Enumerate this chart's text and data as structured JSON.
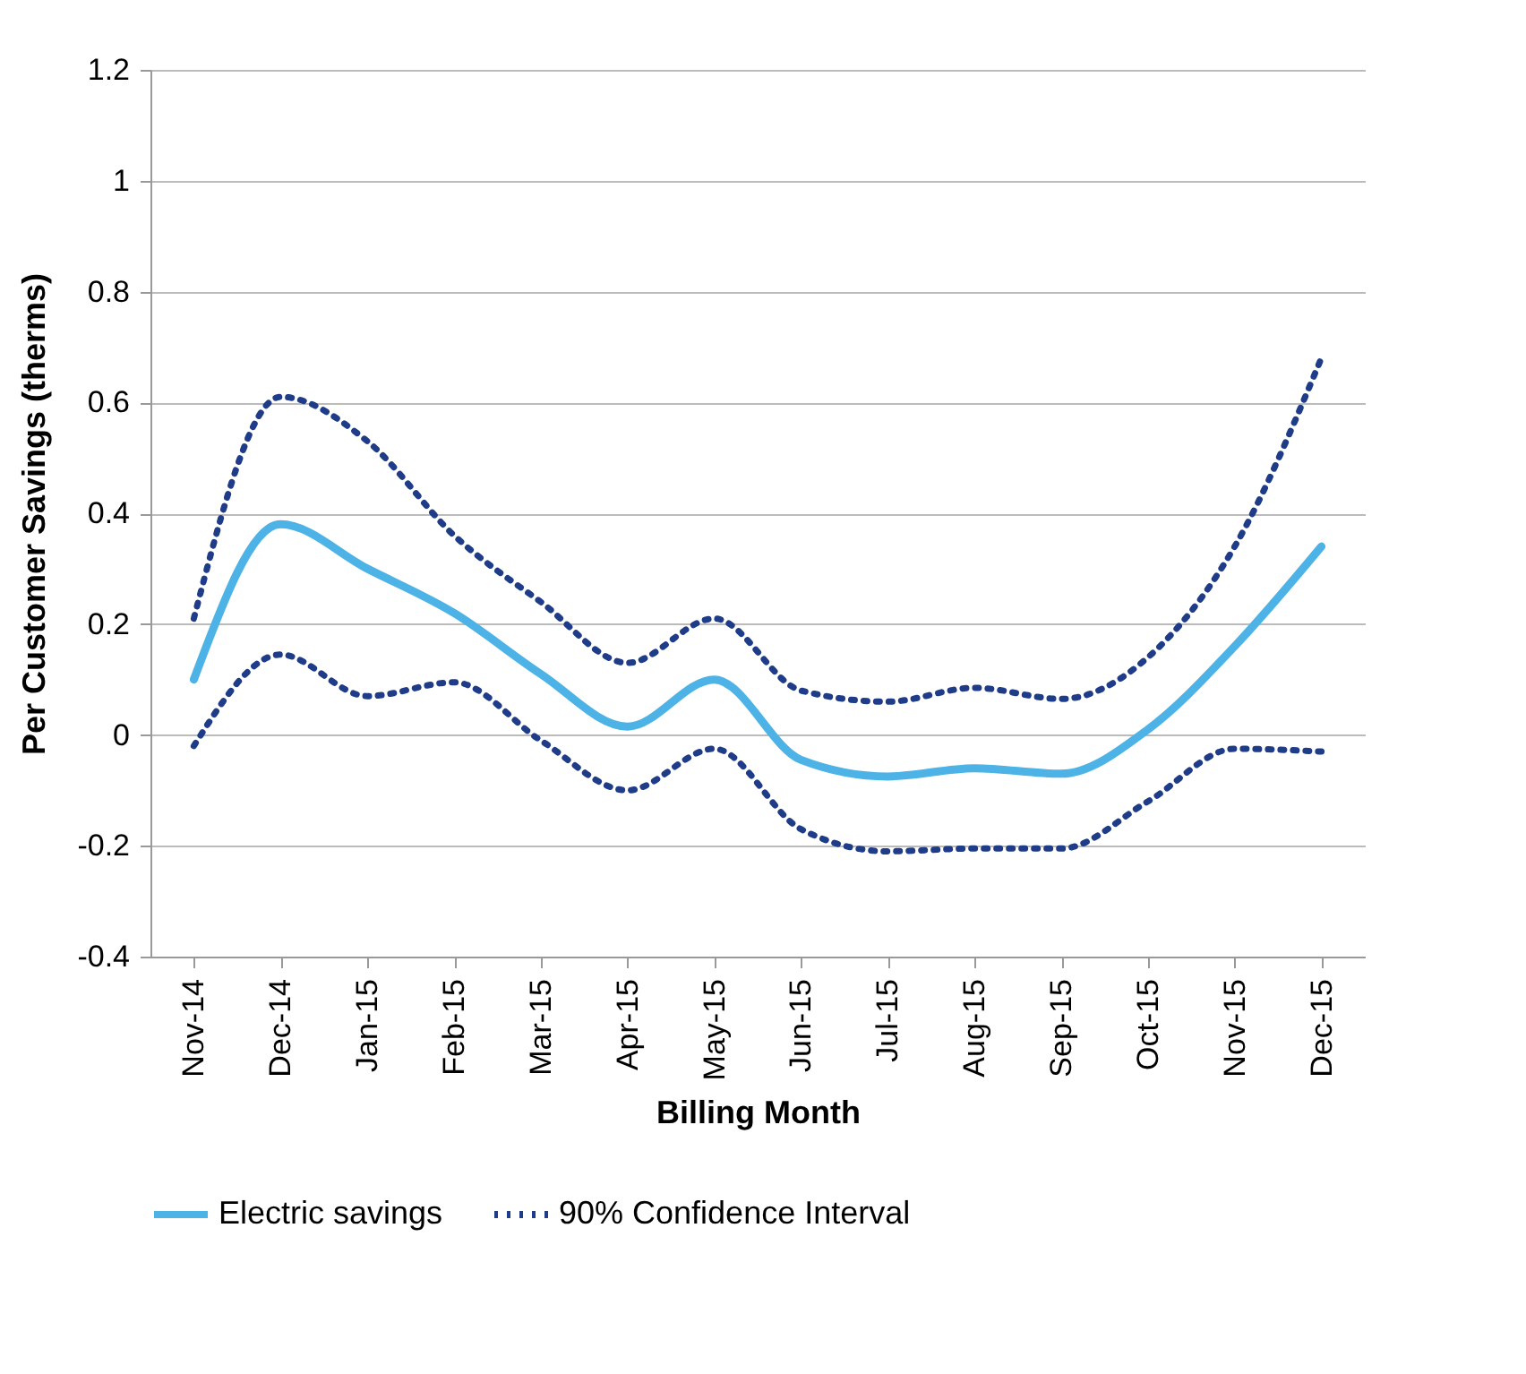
{
  "chart_data": {
    "type": "line",
    "xlabel": "Billing Month",
    "ylabel": "Per Customer Savings (therms)",
    "categories": [
      "Nov-14",
      "Dec-14",
      "Jan-15",
      "Feb-15",
      "Mar-15",
      "Apr-15",
      "May-15",
      "Jun-15",
      "Jul-15",
      "Aug-15",
      "Sep-15",
      "Oct-15",
      "Nov-15",
      "Dec-15"
    ],
    "series": [
      {
        "name": "Electric savings",
        "color": "#4db3e6",
        "line_style": "solid",
        "values": [
          0.1,
          0.38,
          0.3,
          0.22,
          0.11,
          0.015,
          0.1,
          -0.045,
          -0.075,
          -0.06,
          -0.07,
          0.01,
          0.16,
          0.34
        ]
      },
      {
        "name": "90% Confidence Interval",
        "color": "#1f3c88",
        "line_style": "dotted",
        "values": [
          0.21,
          0.61,
          0.53,
          0.36,
          0.24,
          0.13,
          0.21,
          0.08,
          0.06,
          0.085,
          0.065,
          0.14,
          0.34,
          0.68
        ]
      },
      {
        "color": "#1f3c88",
        "line_style": "dotted",
        "values": [
          -0.02,
          0.145,
          0.07,
          0.095,
          -0.01,
          -0.1,
          -0.025,
          -0.17,
          -0.21,
          -0.205,
          -0.205,
          -0.12,
          -0.025,
          -0.03
        ]
      }
    ],
    "ylim": [
      -0.4,
      1.2
    ],
    "yticks": [
      -0.4,
      -0.2,
      0,
      0.2,
      0.4,
      0.6,
      0.8,
      1,
      1.2
    ],
    "grid": "y",
    "legend": "bottom",
    "marker": "none"
  }
}
